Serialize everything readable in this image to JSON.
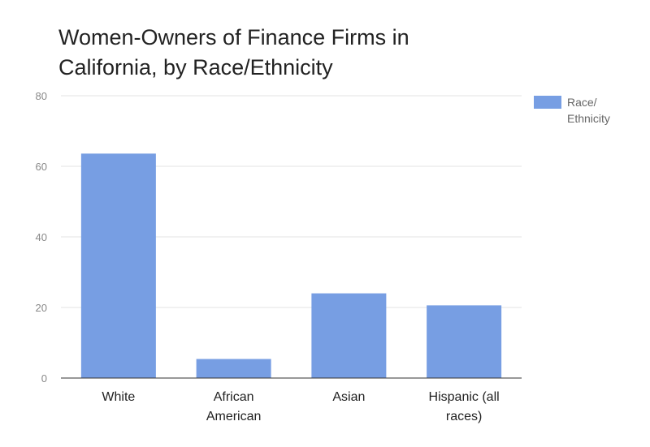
{
  "chart_data": {
    "type": "bar",
    "title": "Women-Owners of Finance Firms in California, by Race/Ethnicity",
    "categories": [
      "White",
      "African American",
      "Asian",
      "Hispanic (all races)"
    ],
    "category_lines": [
      [
        "White"
      ],
      [
        "African",
        "American"
      ],
      [
        "Asian"
      ],
      [
        "Hispanic (all",
        "races)"
      ]
    ],
    "series": [
      {
        "name": "Race/ Ethnicity",
        "name_lines": [
          "Race/",
          "Ethnicity"
        ],
        "values": [
          63.6,
          5.4,
          24.0,
          20.6
        ],
        "color": "#779ee3"
      }
    ],
    "yticks": [
      0,
      20,
      40,
      60,
      80
    ],
    "ylim": [
      0,
      80
    ],
    "grid": true,
    "legend_position": "right",
    "colors": {
      "bar": "#779ee3",
      "grid": "#e3e3e3",
      "axis": "#333333",
      "tick_label": "#888888",
      "category_label": "#222222",
      "legend_text": "#666666",
      "title": "#222222"
    }
  }
}
